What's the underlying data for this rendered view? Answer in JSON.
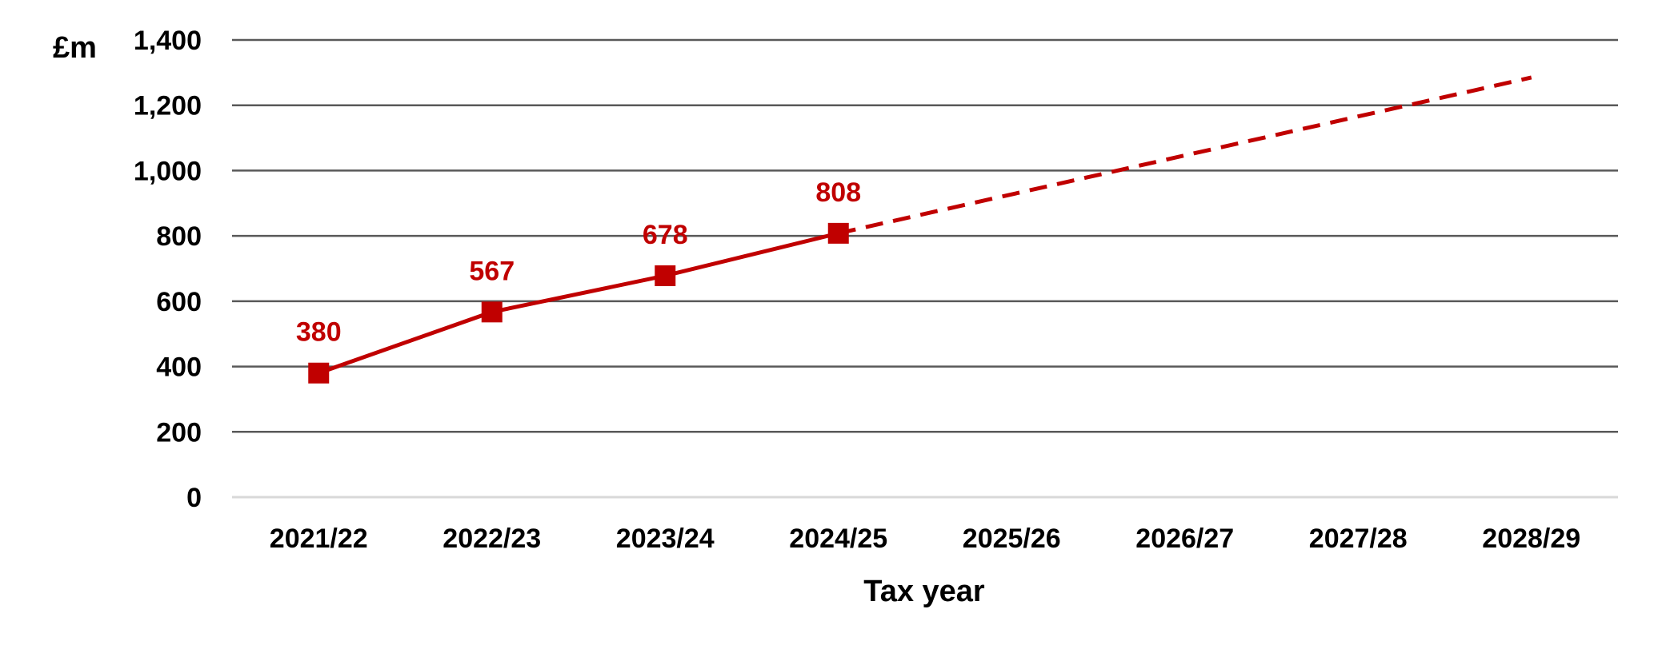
{
  "chart_data": {
    "type": "line",
    "title": "",
    "xlabel": "Tax year",
    "ylabel": "£m",
    "categories": [
      "2021/22",
      "2022/23",
      "2023/24",
      "2024/25",
      "2025/26",
      "2026/27",
      "2027/28",
      "2028/29"
    ],
    "y_ticks": [
      "0",
      "200",
      "400",
      "600",
      "800",
      "1,000",
      "1,200",
      "1,400"
    ],
    "ylim": [
      0,
      1400
    ],
    "grid": true,
    "legend": "none",
    "series": [
      {
        "line_style": "solid",
        "marker": "square",
        "color": "#c00000",
        "points": [
          {
            "x": "2021/22",
            "y": 380,
            "label": "380"
          },
          {
            "x": "2022/23",
            "y": 567,
            "label": "567"
          },
          {
            "x": "2023/24",
            "y": 678,
            "label": "678"
          },
          {
            "x": "2024/25",
            "y": 808,
            "label": "808"
          }
        ]
      },
      {
        "line_style": "dashed",
        "marker": "none",
        "color": "#c00000",
        "points": [
          {
            "x": "2024/25",
            "y": 808
          },
          {
            "x": "2028/29",
            "y": 1285
          }
        ]
      }
    ]
  }
}
